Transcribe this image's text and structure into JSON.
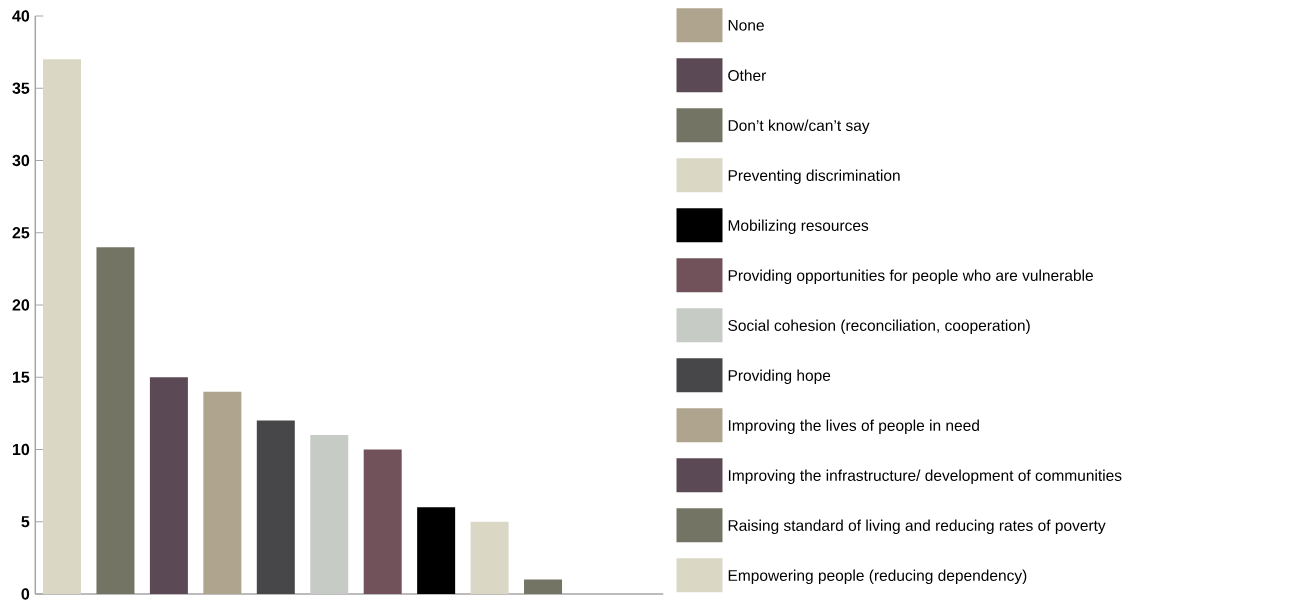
{
  "chart_data": {
    "type": "bar",
    "categories": [
      null,
      null,
      null,
      null,
      null,
      null,
      null,
      null,
      null,
      null,
      null,
      null
    ],
    "series": [
      {
        "name": "Empowering people (reducing dependency)",
        "color": "#dad7c5",
        "values": [
          37,
          null,
          null,
          null,
          null,
          null,
          null,
          null,
          null,
          null,
          null,
          null
        ]
      },
      {
        "name": "Raising standard of living and reducing rates of poverty",
        "color": "#747465",
        "values": [
          null,
          24,
          null,
          null,
          null,
          null,
          null,
          null,
          null,
          null,
          null,
          null
        ]
      },
      {
        "name": "Improving the infrastructure/ development of communities",
        "color": "#5b4a55",
        "values": [
          null,
          null,
          15,
          null,
          null,
          null,
          null,
          null,
          null,
          null,
          null,
          null
        ]
      },
      {
        "name": "Improving the lives of people in need",
        "color": "#afa48d",
        "values": [
          null,
          null,
          null,
          14,
          null,
          null,
          null,
          null,
          null,
          null,
          null,
          null
        ]
      },
      {
        "name": "Providing hope",
        "color": "#474749",
        "values": [
          null,
          null,
          null,
          null,
          12,
          null,
          null,
          null,
          null,
          null,
          null,
          null
        ]
      },
      {
        "name": "Social cohesion (reconciliation, cooperation)",
        "color": "#c6ccc5",
        "values": [
          null,
          null,
          null,
          null,
          null,
          11,
          null,
          null,
          null,
          null,
          null,
          null
        ]
      },
      {
        "name": "Providing opportunities for people who are vulnerable",
        "color": "#71525b",
        "values": [
          null,
          null,
          null,
          null,
          null,
          null,
          10,
          null,
          null,
          null,
          null,
          null
        ]
      },
      {
        "name": "Mobilizing resources",
        "color": "#000000",
        "values": [
          null,
          null,
          null,
          null,
          null,
          null,
          null,
          6,
          null,
          null,
          null,
          null
        ]
      },
      {
        "name": "Preventing discrimination",
        "color": "#dad7c5",
        "values": [
          null,
          null,
          null,
          null,
          null,
          null,
          null,
          null,
          5,
          null,
          null,
          null
        ]
      },
      {
        "name": "Don’t know/can’t say",
        "color": "#747465",
        "values": [
          null,
          null,
          null,
          null,
          null,
          null,
          null,
          null,
          null,
          1,
          null,
          null
        ]
      },
      {
        "name": "Other",
        "color": "#5b4a55",
        "values": [
          null,
          null,
          null,
          null,
          null,
          null,
          null,
          null,
          null,
          null,
          0,
          null
        ]
      },
      {
        "name": "None",
        "color": "#afa48d",
        "values": [
          null,
          null,
          null,
          null,
          null,
          null,
          null,
          null,
          null,
          null,
          null,
          0
        ]
      }
    ],
    "ylim": [
      0,
      40
    ],
    "yticks": [
      0,
      5,
      10,
      15,
      20,
      25,
      30,
      35,
      40
    ],
    "legend": "right"
  }
}
